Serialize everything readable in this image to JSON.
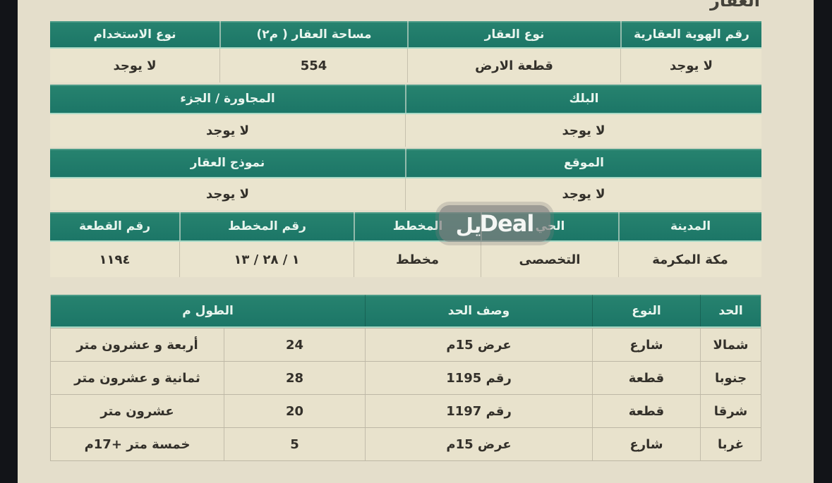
{
  "page": {
    "title": "العقار",
    "colors": {
      "header_green": "#1f7a6a",
      "page_beige": "#e4decb",
      "cell_beige": "#eae4ce",
      "frame_dark": "#121418",
      "header_text": "#e9f5ee",
      "body_text": "#33302a"
    }
  },
  "watermark": {
    "arabic_part": "يل",
    "latin_part": "Deal"
  },
  "property_table": {
    "columns": [
      {
        "label": "رقم الهوية العقارية",
        "value": "لا يوجد"
      },
      {
        "label": "نوع العقار",
        "value": "قطعة الارض"
      },
      {
        "label": "مساحة العقار ( م٢)",
        "value": "554"
      },
      {
        "label": "نوع الاستخدام",
        "value": "لا يوجد"
      }
    ]
  },
  "block_row": {
    "columns": [
      {
        "label": "البلك",
        "value": "لا يوجد"
      },
      {
        "label": "المجاورة / الجزء",
        "value": "لا يوجد"
      }
    ]
  },
  "location_row": {
    "columns": [
      {
        "label": "الموقع",
        "value": "لا يوجد"
      },
      {
        "label": "نموذج العقار",
        "value": "لا يوجد"
      }
    ]
  },
  "plan_table": {
    "columns": [
      {
        "label": "المدينة",
        "value": "مكة المكرمة"
      },
      {
        "label": "الحي",
        "value": "التخصصى"
      },
      {
        "label": "المخطط",
        "value": "مخطط"
      },
      {
        "label": "رقم المخطط",
        "value": "١ / ٢٨ / ١٣"
      },
      {
        "label": "رقم القطعة",
        "value": "١١٩٤"
      }
    ]
  },
  "borders_table": {
    "headers": {
      "boundary": "الحد",
      "type": "النوع",
      "description": "وصف الحد",
      "length": "الطول م"
    },
    "rows": [
      {
        "boundary": "شمالا",
        "type": "شارع",
        "description": "عرض 15م",
        "length_value": "24",
        "length_text": "أربعة و عشرون متر"
      },
      {
        "boundary": "جنوبا",
        "type": "قطعة",
        "description": "رقم 1195",
        "length_value": "28",
        "length_text": "ثمانية و عشرون متر"
      },
      {
        "boundary": "شرقا",
        "type": "قطعة",
        "description": "رقم 1197",
        "length_value": "20",
        "length_text": "عشرون متر"
      },
      {
        "boundary": "غربا",
        "type": "شارع",
        "description": "عرض 15م",
        "length_value": "5",
        "length_text": "خمسة متر +17م"
      }
    ]
  }
}
